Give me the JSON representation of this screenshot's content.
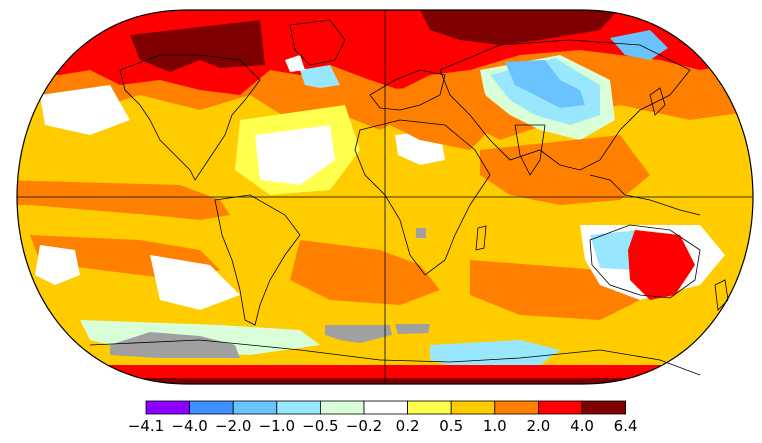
{
  "legend": {
    "colors": [
      "#8b00ff",
      "#3f8fff",
      "#6ac3ff",
      "#99e6ff",
      "#d9ffd9",
      "#ffffff",
      "#ffff4d",
      "#ffcc00",
      "#ff8000",
      "#ff0000",
      "#7f0000"
    ],
    "boundaries": [
      "−4.1",
      "−4.0",
      "−2.0",
      "−1.0",
      "−0.5",
      "−0.2",
      "0.2",
      "0.5",
      "1.0",
      "2.0",
      "4.0",
      "6.4"
    ]
  },
  "map": {
    "projection": "robinson",
    "ocean_base_color": "#ffcc00",
    "missing_data_color": "#a0a0a0",
    "outline_color": "#000000"
  }
}
